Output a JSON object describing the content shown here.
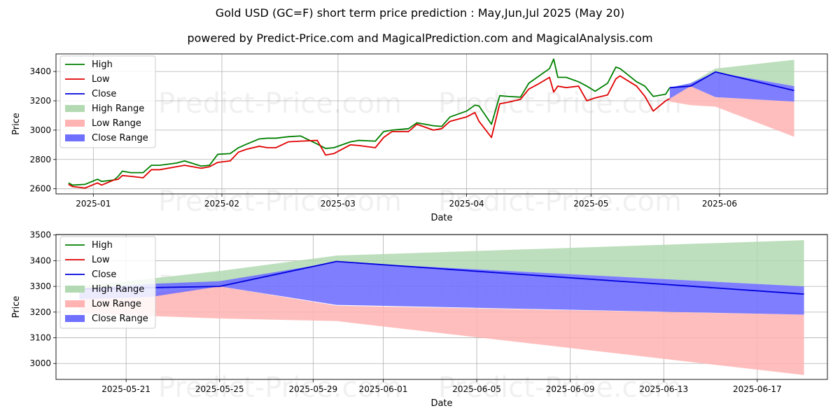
{
  "title": "Gold USD (GC=F) short term price prediction : May,Jun,Jul 2025 (May 20)",
  "subtitle": "powered by Predict-Price.com and MagicalPrediction.com and MagicalAnalysis.com",
  "watermark": "Predict-Price.com",
  "colors": {
    "high": "#008000",
    "low": "#e00000",
    "close": "#0000dd",
    "high_range": "#b2d9b2",
    "low_range": "#ffb3b3",
    "close_range": "#7070ff"
  },
  "chart_data": [
    {
      "type": "line",
      "xlabel": "Date",
      "ylabel": "Price",
      "ylim": [
        2565,
        3520
      ],
      "xlim": [
        "2024-12-23",
        "2025-06-27"
      ],
      "yticks": [
        2600,
        2800,
        3000,
        3200,
        3400
      ],
      "xticks": [
        "2025-01",
        "2025-02",
        "2025-03",
        "2025-04",
        "2025-05",
        "2025-06"
      ],
      "grid": true,
      "legend_position": "top-left",
      "legend": [
        "High",
        "Low",
        "Close",
        "High Range",
        "Low Range",
        "Close Range"
      ],
      "series": [
        {
          "name": "High",
          "x": [
            "2024-12-26",
            "2024-12-27",
            "2024-12-30",
            "2025-01-02",
            "2025-01-03",
            "2025-01-06",
            "2025-01-07",
            "2025-01-08",
            "2025-01-10",
            "2025-01-13",
            "2025-01-15",
            "2025-01-17",
            "2025-01-21",
            "2025-01-23",
            "2025-01-27",
            "2025-01-29",
            "2025-01-31",
            "2025-02-03",
            "2025-02-05",
            "2025-02-07",
            "2025-02-10",
            "2025-02-12",
            "2025-02-14",
            "2025-02-17",
            "2025-02-20",
            "2025-02-24",
            "2025-02-26",
            "2025-02-28",
            "2025-03-04",
            "2025-03-06",
            "2025-03-10",
            "2025-03-12",
            "2025-03-14",
            "2025-03-18",
            "2025-03-20",
            "2025-03-24",
            "2025-03-26",
            "2025-03-28",
            "2025-04-01",
            "2025-04-03",
            "2025-04-04",
            "2025-04-07",
            "2025-04-09",
            "2025-04-11",
            "2025-04-14",
            "2025-04-16",
            "2025-04-18",
            "2025-04-21",
            "2025-04-22",
            "2025-04-23",
            "2025-04-25",
            "2025-04-28",
            "2025-04-30",
            "2025-05-02",
            "2025-05-05",
            "2025-05-07",
            "2025-05-08",
            "2025-05-12",
            "2025-05-14",
            "2025-05-16",
            "2025-05-19",
            "2025-05-20"
          ],
          "values": [
            2640,
            2625,
            2630,
            2665,
            2650,
            2660,
            2685,
            2720,
            2710,
            2710,
            2760,
            2760,
            2775,
            2790,
            2755,
            2760,
            2835,
            2840,
            2880,
            2905,
            2940,
            2945,
            2945,
            2955,
            2960,
            2905,
            2875,
            2880,
            2920,
            2930,
            2925,
            2990,
            3000,
            3010,
            3050,
            3030,
            3025,
            3090,
            3130,
            3170,
            3165,
            3040,
            3235,
            3230,
            3225,
            3320,
            3360,
            3420,
            3485,
            3360,
            3360,
            3330,
            3300,
            3265,
            3320,
            3430,
            3420,
            3330,
            3300,
            3230,
            3245,
            3290
          ]
        },
        {
          "name": "Low",
          "x": [
            "2024-12-26",
            "2024-12-27",
            "2024-12-30",
            "2025-01-02",
            "2025-01-03",
            "2025-01-06",
            "2025-01-07",
            "2025-01-08",
            "2025-01-10",
            "2025-01-13",
            "2025-01-15",
            "2025-01-17",
            "2025-01-21",
            "2025-01-23",
            "2025-01-27",
            "2025-01-29",
            "2025-01-31",
            "2025-02-03",
            "2025-02-05",
            "2025-02-07",
            "2025-02-10",
            "2025-02-12",
            "2025-02-14",
            "2025-02-17",
            "2025-02-20",
            "2025-02-24",
            "2025-02-26",
            "2025-02-28",
            "2025-03-04",
            "2025-03-06",
            "2025-03-10",
            "2025-03-12",
            "2025-03-14",
            "2025-03-18",
            "2025-03-20",
            "2025-03-24",
            "2025-03-26",
            "2025-03-28",
            "2025-04-01",
            "2025-04-03",
            "2025-04-04",
            "2025-04-07",
            "2025-04-09",
            "2025-04-11",
            "2025-04-14",
            "2025-04-16",
            "2025-04-18",
            "2025-04-21",
            "2025-04-22",
            "2025-04-23",
            "2025-04-25",
            "2025-04-28",
            "2025-04-30",
            "2025-05-02",
            "2025-05-05",
            "2025-05-07",
            "2025-05-08",
            "2025-05-12",
            "2025-05-14",
            "2025-05-16",
            "2025-05-19",
            "2025-05-20"
          ],
          "values": [
            2630,
            2615,
            2605,
            2640,
            2625,
            2660,
            2665,
            2690,
            2685,
            2675,
            2730,
            2730,
            2750,
            2760,
            2740,
            2750,
            2780,
            2790,
            2850,
            2870,
            2890,
            2880,
            2880,
            2920,
            2925,
            2930,
            2830,
            2840,
            2900,
            2895,
            2880,
            2950,
            2990,
            2990,
            3040,
            3000,
            3010,
            3060,
            3090,
            3120,
            3060,
            2950,
            3180,
            3190,
            3210,
            3280,
            3310,
            3360,
            3260,
            3300,
            3290,
            3300,
            3200,
            3220,
            3240,
            3350,
            3370,
            3300,
            3230,
            3130,
            3200,
            3215
          ]
        },
        {
          "name": "High Range",
          "x": [
            "2025-05-20",
            "2025-05-25",
            "2025-05-31",
            "2025-06-19"
          ],
          "upper": [
            3290,
            3320,
            3420,
            3480
          ],
          "lower": [
            3290,
            3290,
            3395,
            3300
          ]
        },
        {
          "name": "Low Range",
          "x": [
            "2025-05-20",
            "2025-05-25",
            "2025-05-31",
            "2025-06-19"
          ],
          "upper": [
            3215,
            3300,
            3225,
            3195
          ],
          "lower": [
            3195,
            3170,
            3160,
            2955
          ]
        },
        {
          "name": "Close Range",
          "x": [
            "2025-05-20",
            "2025-05-25",
            "2025-05-31",
            "2025-06-19"
          ],
          "upper": [
            3290,
            3320,
            3395,
            3300
          ],
          "lower": [
            3215,
            3300,
            3225,
            3195
          ]
        },
        {
          "name": "Close",
          "x": [
            "2025-05-20",
            "2025-05-25",
            "2025-05-31",
            "2025-06-19"
          ],
          "values": [
            3290,
            3300,
            3397,
            3270
          ]
        }
      ]
    },
    {
      "type": "line",
      "xlabel": "Date",
      "ylabel": "Price",
      "ylim": [
        2938,
        3502
      ],
      "xlim": [
        "2025-05-18",
        "2025-06-20"
      ],
      "yticks": [
        3000,
        3100,
        3200,
        3300,
        3400,
        3500
      ],
      "xticks": [
        "2025-05-21",
        "2025-05-25",
        "2025-05-29",
        "2025-06-01",
        "2025-06-05",
        "2025-06-09",
        "2025-06-13",
        "2025-06-17"
      ],
      "grid": true,
      "legend_position": "top-left",
      "legend": [
        "High",
        "Low",
        "Close",
        "High Range",
        "Low Range",
        "Close Range"
      ],
      "series": [
        {
          "name": "High Range",
          "x": [
            "2025-05-19",
            "2025-05-22",
            "2025-05-25",
            "2025-05-30",
            "2025-06-19"
          ],
          "upper": [
            3300,
            3330,
            3360,
            3420,
            3480
          ],
          "lower": [
            3290,
            3295,
            3300,
            3395,
            3300
          ]
        },
        {
          "name": "Low Range",
          "x": [
            "2025-05-19",
            "2025-05-22",
            "2025-05-25",
            "2025-05-30",
            "2025-06-19"
          ],
          "upper": [
            3290,
            3275,
            3300,
            3225,
            3190
          ],
          "lower": [
            3195,
            3185,
            3175,
            3165,
            2955
          ]
        },
        {
          "name": "Close Range",
          "x": [
            "2025-05-19",
            "2025-05-22",
            "2025-05-25",
            "2025-05-30",
            "2025-06-19"
          ],
          "upper": [
            3290,
            3310,
            3320,
            3395,
            3300
          ],
          "lower": [
            3250,
            3258,
            3300,
            3228,
            3190
          ]
        },
        {
          "name": "Close",
          "x": [
            "2025-05-19",
            "2025-05-25",
            "2025-05-30",
            "2025-06-19"
          ],
          "values": [
            3290,
            3300,
            3397,
            3270
          ]
        }
      ]
    }
  ]
}
